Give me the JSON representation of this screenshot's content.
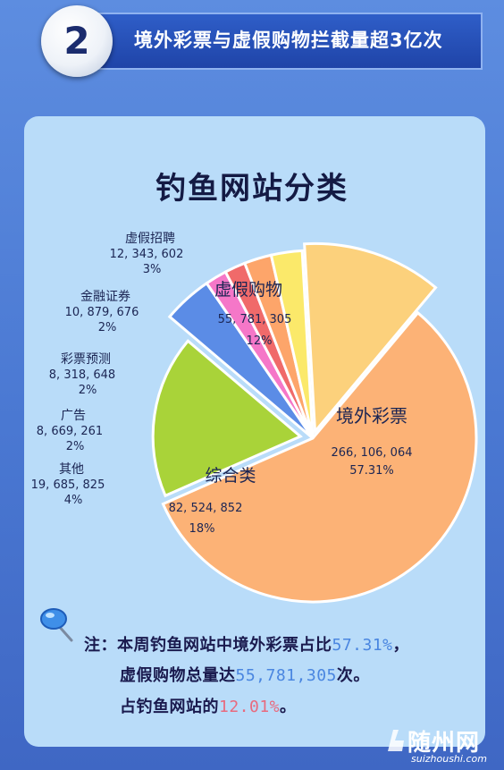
{
  "header": {
    "number": "2",
    "title": "境外彩票与虚假购物拦截量超3亿次"
  },
  "chart_data": {
    "type": "pie",
    "title": "钓鱼网站分类",
    "slices": [
      {
        "name": "境外彩票",
        "value": 266106064,
        "value_label": "266, 106, 064",
        "percent": 57.31,
        "percent_label": "57.31%",
        "color": "#fcb276"
      },
      {
        "name": "综合类",
        "value": 82524852,
        "value_label": "82, 524, 852",
        "percent": 18,
        "percent_label": "18%",
        "color": "#a9d339"
      },
      {
        "name": "其他",
        "value": 19685825,
        "value_label": "19, 685, 825",
        "percent": 4,
        "percent_label": "4%",
        "color": "#5b8ce6"
      },
      {
        "name": "广告",
        "value": 8669261,
        "value_label": "8, 669, 261",
        "percent": 2,
        "percent_label": "2%",
        "color": "#f577c8"
      },
      {
        "name": "彩票预测",
        "value": 8318648,
        "value_label": "8, 318, 648",
        "percent": 2,
        "percent_label": "2%",
        "color": "#f06a6a"
      },
      {
        "name": "金融证券",
        "value": 10879676,
        "value_label": "10, 879, 676",
        "percent": 2,
        "percent_label": "2%",
        "color": "#fda56a"
      },
      {
        "name": "虚假招聘",
        "value": 12343602,
        "value_label": "12, 343, 602",
        "percent": 3,
        "percent_label": "3%",
        "color": "#fbe96a"
      },
      {
        "name": "虚假购物",
        "value": 55781305,
        "value_label": "55, 781, 305",
        "percent": 12,
        "percent_label": "12%",
        "color": "#fcd17c"
      }
    ]
  },
  "note": {
    "line1_prefix": "注：本周钓鱼网站中境外彩票占比",
    "line1_value": "57.31%",
    "line1_suffix": "，",
    "line2_prefix": "虚假购物总量达",
    "line2_value": "55,781,305",
    "line2_suffix": "次。",
    "line3_prefix": "占钓鱼网站的",
    "line3_value": "12.01%",
    "line3_suffix": "。"
  },
  "watermark": {
    "text": "随州网",
    "url": "suizhoushi.com"
  }
}
